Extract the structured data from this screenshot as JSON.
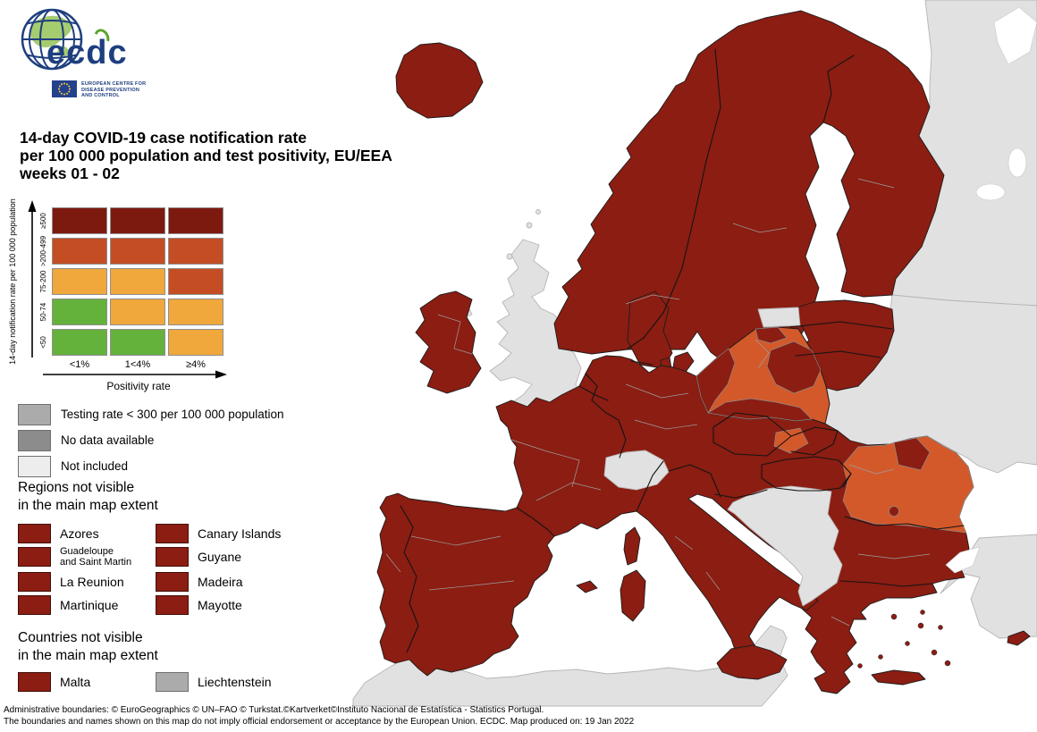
{
  "logo": {
    "acronym": "ecdc",
    "org_lines": [
      "EUROPEAN CENTRE FOR",
      "DISEASE PREVENTION",
      "AND CONTROL"
    ]
  },
  "title": {
    "line1": "14-day COVID-19 case notification rate",
    "line2": "per 100 000 population and test positivity, EU/EEA",
    "line3": "weeks 01 - 02"
  },
  "matrix_legend": {
    "y_axis_title": "14-day notification rate per 100 000 population",
    "x_axis_title": "Positivity rate",
    "row_labels_top_to_bottom": [
      "≥500",
      ">200-499",
      "75-200",
      "50-74",
      "<50"
    ],
    "col_labels": [
      "<1%",
      "1<4%",
      "≥4%"
    ],
    "cell_color_keys": [
      [
        "dark_red",
        "dark_red",
        "dark_red"
      ],
      [
        "red",
        "red",
        "red"
      ],
      [
        "amber",
        "amber",
        "red"
      ],
      [
        "green",
        "amber",
        "amber"
      ],
      [
        "green",
        "green",
        "amber"
      ]
    ]
  },
  "colors": {
    "dark_red": "#7d1a10",
    "red": "#c44d24",
    "amber": "#f0a73c",
    "green": "#64b13c",
    "map_dark_red": "#8b1d12",
    "map_orange": "#d4592a",
    "testing_gray": "#ababab",
    "no_data_gray": "#8c8c8c",
    "not_included_gray": "#ededed",
    "map_gray": "#e1e1e1",
    "sea_white": "#ffffff"
  },
  "legend_items": [
    {
      "label": "Testing rate < 300 per 100 000 population",
      "color_key": "testing_gray"
    },
    {
      "label": "No data available",
      "color_key": "no_data_gray"
    },
    {
      "label": "Not included",
      "color_key": "not_included_gray"
    }
  ],
  "regions_not_visible": {
    "heading_line1": "Regions not visible",
    "heading_line2": "in the main map extent",
    "col1": [
      {
        "line1": "Azores",
        "line2": ""
      },
      {
        "line1": "Guadeloupe",
        "line2": "and Saint Martin"
      },
      {
        "line1": "La Reunion",
        "line2": ""
      },
      {
        "line1": "Martinique",
        "line2": ""
      }
    ],
    "col2": [
      {
        "line1": "Canary Islands",
        "line2": ""
      },
      {
        "line1": "Guyane",
        "line2": ""
      },
      {
        "line1": "Madeira",
        "line2": ""
      },
      {
        "line1": "Mayotte",
        "line2": ""
      }
    ]
  },
  "countries_not_visible": {
    "heading_line1": "Countries not visible",
    "heading_line2": "in the main map extent",
    "items": [
      {
        "label": "Malta",
        "color_key": "map_dark_red"
      },
      {
        "label": "Liechtenstein",
        "color_key": "testing_gray"
      }
    ]
  },
  "footer": {
    "line1": "Administrative boundaries: © EuroGeographics © UN–FAO © Turkstat.©Kartverket©Instituto Nacional de Estatística - Statistics Portugal.",
    "line2": "The boundaries and names shown on this map do not imply official endorsement or acceptance by the European Union. ECDC. Map produced on: 19 Jan 2022"
  },
  "map": {
    "categories": {
      "iceland": "map_dark_red",
      "nordics": "map_dark_red",
      "denmark": "map_dark_red",
      "baltics": "map_dark_red",
      "ireland": "map_dark_red",
      "mainland-eu": "map_dark_red",
      "corsica": "map_dark_red",
      "sardinia": "map_dark_red",
      "sicily": "map_dark_red",
      "balearics": "map_dark_red",
      "crete": "map_dark_red",
      "cyprus": "map_dark_red",
      "gotland": "map_dark_red",
      "greek-islands": "map_dark_red",
      "poland-orange-regions": "map_orange",
      "poland-dark-regions": "map_dark_red",
      "slovakia-east-region": "map_orange",
      "romania-southeast-regions": "map_orange",
      "romania-inner-dark-region": "map_dark_red",
      "bucharest-region": "map_dark_red",
      "united-kingdom": "map_gray",
      "northern-ireland": "map_gray",
      "switzerland": "map_gray",
      "western-balkans": "map_gray",
      "turkey": "map_gray",
      "russia": "map_gray",
      "eastern-neighbours": "map_gray",
      "kaliningrad": "map_gray",
      "north-africa": "map_gray",
      "small-gray-isles": "map_gray",
      "white-sea": "sea_white",
      "russian-lakes": "sea_white",
      "marmara-sea": "sea_white"
    }
  }
}
